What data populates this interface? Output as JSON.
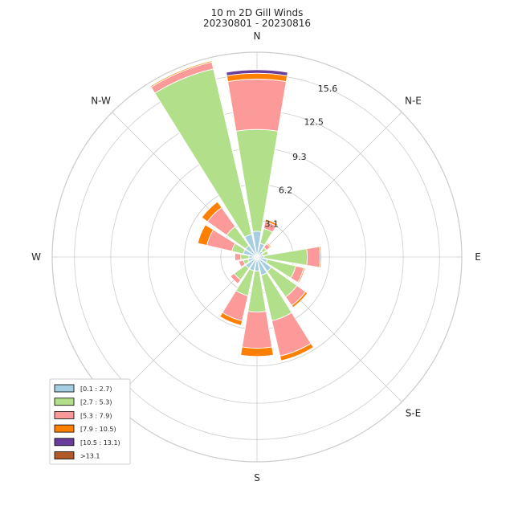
{
  "chart_data": {
    "type": "windrose",
    "title": "10 m 2D Gill Winds",
    "subtitle": "20230801 - 20230816",
    "directions": [
      "N",
      "NNE",
      "NE",
      "ENE",
      "E",
      "ESE",
      "SE",
      "SSE",
      "S",
      "SSW",
      "SW",
      "WSW",
      "W",
      "WNW",
      "NW",
      "NNW"
    ],
    "direction_labels": [
      {
        "angle": 0,
        "text": "N"
      },
      {
        "angle": 45,
        "text": "N-E"
      },
      {
        "angle": 90,
        "text": "E"
      },
      {
        "angle": 135,
        "text": "S-E"
      },
      {
        "angle": 180,
        "text": "S"
      },
      {
        "angle": 225,
        "text": "S-W"
      },
      {
        "angle": 270,
        "text": "W"
      },
      {
        "angle": 315,
        "text": "N-W"
      }
    ],
    "radial_max": 17.5,
    "radial_ticks": [
      3.1,
      6.2,
      9.3,
      12.5,
      15.6
    ],
    "radial_tick_labels": [
      "3.1",
      "6.2",
      "9.3",
      "12.5",
      "15.6"
    ],
    "grid": true,
    "legend_position": "lower-left",
    "bins": [
      {
        "name": "[0.1 : 2.7)",
        "color": "#a6cee3"
      },
      {
        "name": "[2.7 : 5.3)",
        "color": "#b2df8a"
      },
      {
        "name": "[5.3 : 7.9)",
        "color": "#fb9a99"
      },
      {
        "name": "[7.9 : 10.5)",
        "color": "#ff7f00"
      },
      {
        "name": "[10.5 : 13.1)",
        "color": "#6a3d9a"
      },
      {
        "name": ">13.1",
        "color": "#b15928"
      }
    ],
    "frequencies": [
      [
        2.2,
        8.7,
        4.3,
        0.5,
        0.3,
        0.0
      ],
      [
        1.2,
        1.3,
        0.6,
        0.2,
        0.0,
        0.0
      ],
      [
        0.6,
        0.4,
        0.4,
        0.1,
        0.0,
        0.0
      ],
      [
        0.5,
        0.5,
        0.0,
        0.0,
        0.0,
        0.0
      ],
      [
        0.6,
        3.7,
        1.1,
        0.1,
        0.0,
        0.0
      ],
      [
        0.9,
        2.5,
        0.7,
        0.1,
        0.0,
        0.0
      ],
      [
        1.5,
        2.7,
        0.9,
        0.2,
        0.0,
        0.0
      ],
      [
        1.6,
        4.0,
        3.1,
        0.4,
        0.0,
        0.0
      ],
      [
        1.2,
        3.5,
        3.1,
        0.7,
        0.0,
        0.0
      ],
      [
        1.2,
        2.2,
        2.2,
        0.4,
        0.0,
        0.0
      ],
      [
        1.2,
        1.2,
        0.4,
        0.0,
        0.0,
        0.0
      ],
      [
        0.8,
        0.4,
        0.4,
        0.0,
        0.0,
        0.0
      ],
      [
        0.7,
        0.7,
        0.5,
        0.0,
        0.0,
        0.0
      ],
      [
        1.2,
        1.0,
        2.2,
        0.8,
        0.0,
        0.0
      ],
      [
        1.2,
        2.0,
        2.0,
        0.6,
        0.0,
        0.0
      ],
      [
        2.0,
        14.5,
        0.6,
        0.1,
        0.0,
        0.0
      ]
    ]
  }
}
